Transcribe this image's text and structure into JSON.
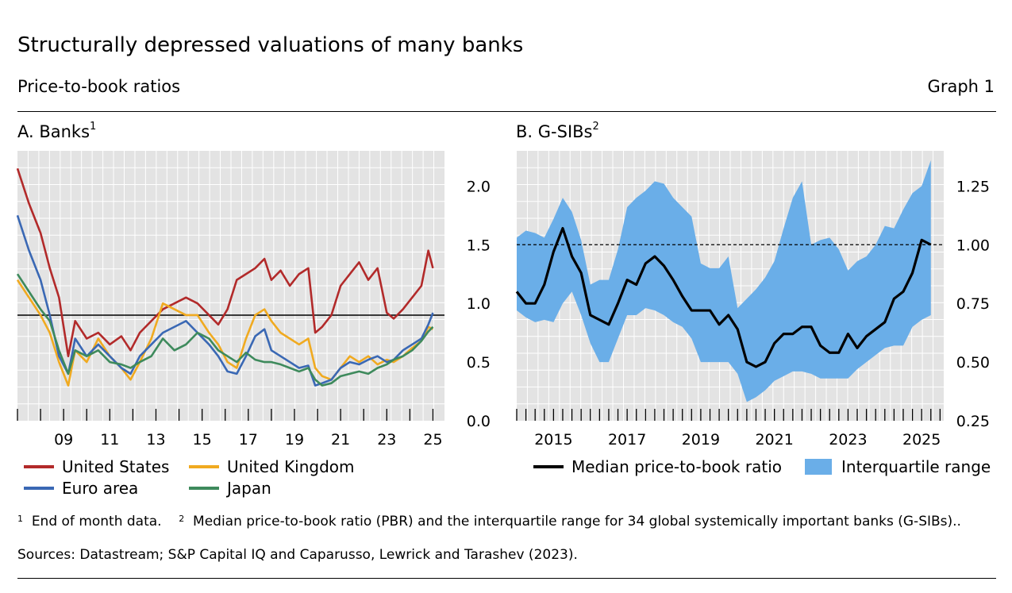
{
  "header": {
    "title": "Structurally depressed valuations of many banks",
    "subtitle": "Price-to-book ratios",
    "graph_label": "Graph 1"
  },
  "panels": {
    "a": {
      "title": "A. Banks",
      "title_sup": "1"
    },
    "b": {
      "title": "B.  G-SIBs",
      "title_sup": "2"
    }
  },
  "footnotes": {
    "n1_mark": "1",
    "n1_text": "End of month data.",
    "n2_mark": "2",
    "n2_text": "Median price-to-book ratio (PBR) and the interquartile range for 34 global systemically important banks (G-SIBs)..",
    "sources": "Sources: Datastream; S&P Capital IQ and Caparusso, Lewrick and Tarashev (2023)."
  },
  "chart_data": [
    {
      "id": "panel-a",
      "type": "line",
      "title": "A. Banks",
      "xlim": [
        2007.0,
        2025.5
      ],
      "ylim": [
        0.0,
        2.3
      ],
      "y_ticks": [
        0.0,
        0.5,
        1.0,
        1.5,
        2.0
      ],
      "y_tick_labels": [
        "0.0",
        "0.5",
        "1.0",
        "1.5",
        "2.0"
      ],
      "x_ticks": [
        2009,
        2011,
        2013,
        2015,
        2017,
        2019,
        2021,
        2023,
        2025
      ],
      "x_tick_labels": [
        "09",
        "11",
        "13",
        "15",
        "17",
        "19",
        "21",
        "23",
        "25"
      ],
      "reference_line": 0.9,
      "grid": true,
      "series": [
        {
          "name": "United States",
          "color": "#b22a2a",
          "x": [
            2007.0,
            2007.5,
            2008.0,
            2008.4,
            2008.8,
            2009.2,
            2009.5,
            2010.0,
            2010.5,
            2011.0,
            2011.5,
            2011.9,
            2012.3,
            2012.8,
            2013.3,
            2013.8,
            2014.3,
            2014.8,
            2015.3,
            2015.7,
            2016.1,
            2016.5,
            2016.9,
            2017.3,
            2017.7,
            2018.0,
            2018.4,
            2018.8,
            2019.2,
            2019.6,
            2019.9,
            2020.2,
            2020.6,
            2021.0,
            2021.4,
            2021.8,
            2022.2,
            2022.6,
            2023.0,
            2023.3,
            2023.7,
            2024.1,
            2024.5,
            2024.8,
            2025.0
          ],
          "values": [
            2.15,
            1.85,
            1.6,
            1.3,
            1.05,
            0.55,
            0.85,
            0.7,
            0.75,
            0.65,
            0.72,
            0.6,
            0.75,
            0.85,
            0.95,
            1.0,
            1.05,
            1.0,
            0.9,
            0.82,
            0.95,
            1.2,
            1.25,
            1.3,
            1.38,
            1.2,
            1.28,
            1.15,
            1.25,
            1.3,
            0.75,
            0.8,
            0.9,
            1.15,
            1.25,
            1.35,
            1.2,
            1.3,
            0.92,
            0.87,
            0.95,
            1.05,
            1.15,
            1.45,
            1.3
          ]
        },
        {
          "name": "United Kingdom",
          "color": "#f0aa20",
          "x": [
            2007.0,
            2007.5,
            2008.0,
            2008.4,
            2008.8,
            2009.2,
            2009.5,
            2010.0,
            2010.5,
            2011.0,
            2011.5,
            2011.9,
            2012.3,
            2012.8,
            2013.3,
            2013.8,
            2014.3,
            2014.8,
            2015.3,
            2015.7,
            2016.1,
            2016.5,
            2016.9,
            2017.3,
            2017.7,
            2018.0,
            2018.4,
            2018.8,
            2019.2,
            2019.6,
            2019.9,
            2020.2,
            2020.6,
            2021.0,
            2021.4,
            2021.8,
            2022.2,
            2022.6,
            2023.0,
            2023.3,
            2023.7,
            2024.1,
            2024.5,
            2024.8,
            2025.0
          ],
          "values": [
            1.2,
            1.05,
            0.9,
            0.75,
            0.5,
            0.3,
            0.6,
            0.5,
            0.7,
            0.55,
            0.45,
            0.35,
            0.5,
            0.7,
            1.0,
            0.95,
            0.9,
            0.9,
            0.75,
            0.65,
            0.5,
            0.45,
            0.7,
            0.9,
            0.95,
            0.85,
            0.75,
            0.7,
            0.65,
            0.7,
            0.45,
            0.38,
            0.35,
            0.45,
            0.55,
            0.5,
            0.55,
            0.48,
            0.52,
            0.5,
            0.55,
            0.62,
            0.68,
            0.8,
            0.78
          ]
        },
        {
          "name": "Euro area",
          "color": "#3a68b4",
          "x": [
            2007.0,
            2007.5,
            2008.0,
            2008.4,
            2008.8,
            2009.2,
            2009.5,
            2010.0,
            2010.5,
            2011.0,
            2011.5,
            2011.9,
            2012.3,
            2012.8,
            2013.3,
            2013.8,
            2014.3,
            2014.8,
            2015.3,
            2015.7,
            2016.1,
            2016.5,
            2016.9,
            2017.3,
            2017.7,
            2018.0,
            2018.4,
            2018.8,
            2019.2,
            2019.6,
            2019.9,
            2020.2,
            2020.6,
            2021.0,
            2021.4,
            2021.8,
            2022.2,
            2022.6,
            2023.0,
            2023.3,
            2023.7,
            2024.1,
            2024.5,
            2024.8,
            2025.0
          ],
          "values": [
            1.75,
            1.45,
            1.2,
            0.9,
            0.55,
            0.4,
            0.7,
            0.55,
            0.65,
            0.55,
            0.45,
            0.4,
            0.55,
            0.65,
            0.75,
            0.8,
            0.85,
            0.75,
            0.65,
            0.55,
            0.42,
            0.4,
            0.55,
            0.72,
            0.78,
            0.6,
            0.55,
            0.5,
            0.45,
            0.47,
            0.3,
            0.32,
            0.35,
            0.45,
            0.5,
            0.48,
            0.52,
            0.55,
            0.5,
            0.52,
            0.6,
            0.65,
            0.7,
            0.82,
            0.92
          ]
        },
        {
          "name": "Japan",
          "color": "#3e8a5c",
          "x": [
            2007.0,
            2007.5,
            2008.0,
            2008.4,
            2008.8,
            2009.2,
            2009.5,
            2010.0,
            2010.5,
            2011.0,
            2011.5,
            2011.9,
            2012.3,
            2012.8,
            2013.3,
            2013.8,
            2014.3,
            2014.8,
            2015.3,
            2015.7,
            2016.1,
            2016.5,
            2016.9,
            2017.3,
            2017.7,
            2018.0,
            2018.4,
            2018.8,
            2019.2,
            2019.6,
            2019.9,
            2020.2,
            2020.6,
            2021.0,
            2021.4,
            2021.8,
            2022.2,
            2022.6,
            2023.0,
            2023.3,
            2023.7,
            2024.1,
            2024.5,
            2024.8,
            2025.0
          ],
          "values": [
            1.25,
            1.1,
            0.95,
            0.85,
            0.6,
            0.4,
            0.6,
            0.55,
            0.6,
            0.5,
            0.48,
            0.45,
            0.5,
            0.55,
            0.7,
            0.6,
            0.65,
            0.75,
            0.7,
            0.6,
            0.55,
            0.5,
            0.58,
            0.52,
            0.5,
            0.5,
            0.48,
            0.45,
            0.42,
            0.45,
            0.35,
            0.3,
            0.32,
            0.38,
            0.4,
            0.42,
            0.4,
            0.45,
            0.48,
            0.52,
            0.55,
            0.6,
            0.68,
            0.76,
            0.8
          ]
        }
      ]
    },
    {
      "id": "panel-b",
      "type": "line",
      "title": "B.  G-SIBs",
      "xlim": [
        2014.0,
        2025.6
      ],
      "ylim": [
        0.25,
        1.4
      ],
      "y_ticks": [
        0.25,
        0.5,
        0.75,
        1.0,
        1.25
      ],
      "y_tick_labels": [
        "0.25",
        "0.50",
        "0.75",
        "1.00",
        "1.25"
      ],
      "x_ticks": [
        2015,
        2017,
        2019,
        2021,
        2023,
        2025
      ],
      "x_tick_labels": [
        "2015",
        "2017",
        "2019",
        "2021",
        "2023",
        "2025"
      ],
      "reference_line": 1.0,
      "grid": true,
      "series": [
        {
          "name": "Median price-to-book ratio",
          "color": "#000000",
          "x": [
            2014.0,
            2014.25,
            2014.5,
            2014.75,
            2015.0,
            2015.25,
            2015.5,
            2015.75,
            2016.0,
            2016.25,
            2016.5,
            2016.75,
            2017.0,
            2017.25,
            2017.5,
            2017.75,
            2018.0,
            2018.25,
            2018.5,
            2018.75,
            2019.0,
            2019.25,
            2019.5,
            2019.75,
            2020.0,
            2020.25,
            2020.5,
            2020.75,
            2021.0,
            2021.25,
            2021.5,
            2021.75,
            2022.0,
            2022.25,
            2022.5,
            2022.75,
            2023.0,
            2023.25,
            2023.5,
            2023.75,
            2024.0,
            2024.25,
            2024.5,
            2024.75,
            2025.0,
            2025.25
          ],
          "values": [
            0.8,
            0.75,
            0.75,
            0.83,
            0.97,
            1.07,
            0.95,
            0.88,
            0.7,
            0.68,
            0.66,
            0.75,
            0.85,
            0.83,
            0.92,
            0.95,
            0.91,
            0.85,
            0.78,
            0.72,
            0.72,
            0.72,
            0.66,
            0.7,
            0.64,
            0.5,
            0.48,
            0.5,
            0.58,
            0.62,
            0.62,
            0.65,
            0.65,
            0.57,
            0.54,
            0.54,
            0.62,
            0.56,
            0.61,
            0.64,
            0.67,
            0.77,
            0.8,
            0.88,
            1.02,
            1.0
          ]
        },
        {
          "name": "Interquartile range",
          "color": "#6aaee8",
          "x": [
            2014.0,
            2014.25,
            2014.5,
            2014.75,
            2015.0,
            2015.25,
            2015.5,
            2015.75,
            2016.0,
            2016.25,
            2016.5,
            2016.75,
            2017.0,
            2017.25,
            2017.5,
            2017.75,
            2018.0,
            2018.25,
            2018.5,
            2018.75,
            2019.0,
            2019.25,
            2019.5,
            2019.75,
            2020.0,
            2020.25,
            2020.5,
            2020.75,
            2021.0,
            2021.25,
            2021.5,
            2021.75,
            2022.0,
            2022.25,
            2022.5,
            2022.75,
            2023.0,
            2023.25,
            2023.5,
            2023.75,
            2024.0,
            2024.25,
            2024.5,
            2024.75,
            2025.0,
            2025.25
          ],
          "lower": [
            0.72,
            0.69,
            0.67,
            0.68,
            0.67,
            0.75,
            0.8,
            0.7,
            0.58,
            0.5,
            0.5,
            0.6,
            0.7,
            0.7,
            0.73,
            0.72,
            0.7,
            0.67,
            0.65,
            0.6,
            0.5,
            0.5,
            0.5,
            0.5,
            0.45,
            0.33,
            0.35,
            0.38,
            0.42,
            0.44,
            0.46,
            0.46,
            0.45,
            0.43,
            0.43,
            0.43,
            0.43,
            0.47,
            0.5,
            0.53,
            0.56,
            0.57,
            0.57,
            0.65,
            0.68,
            0.7
          ],
          "upper": [
            1.03,
            1.06,
            1.05,
            1.03,
            1.11,
            1.2,
            1.14,
            1.02,
            0.83,
            0.85,
            0.85,
            0.98,
            1.16,
            1.2,
            1.23,
            1.27,
            1.26,
            1.2,
            1.16,
            1.12,
            0.92,
            0.9,
            0.9,
            0.95,
            0.73,
            0.77,
            0.81,
            0.86,
            0.93,
            1.07,
            1.2,
            1.27,
            1.0,
            1.02,
            1.03,
            0.98,
            0.89,
            0.93,
            0.95,
            1.0,
            1.08,
            1.07,
            1.15,
            1.22,
            1.25,
            1.36
          ]
        }
      ]
    }
  ]
}
